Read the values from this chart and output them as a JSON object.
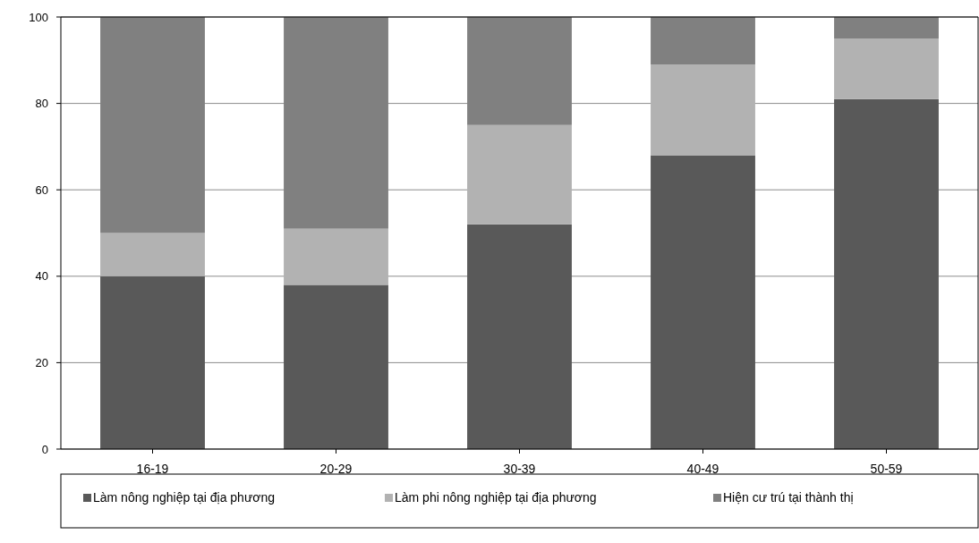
{
  "chart_data": {
    "type": "bar",
    "stacked": true,
    "categories": [
      "16-19",
      "20-29",
      "30-39",
      "40-49",
      "50-59"
    ],
    "series": [
      {
        "name": "Làm nông nghiệp tại địa phương",
        "color": "#595959",
        "values": [
          40,
          38,
          52,
          68,
          81
        ]
      },
      {
        "name": "Làm phi nông nghiệp tại địa phương",
        "color": "#b2b2b2",
        "values": [
          10,
          13,
          23,
          21,
          14
        ]
      },
      {
        "name": "Hiện cư trú tại thành thị",
        "color": "#808080",
        "values": [
          50,
          49,
          25,
          11,
          5
        ]
      }
    ],
    "ylim": [
      0,
      100
    ],
    "yticks": [
      0,
      20,
      40,
      60,
      80,
      100
    ],
    "grid": "y",
    "legend": "bottom"
  }
}
